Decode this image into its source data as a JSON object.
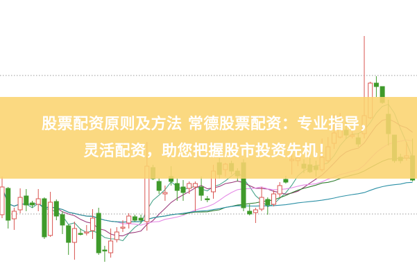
{
  "banner": {
    "line1": "股票配资原则及方法 常德股票配资：专业指导，",
    "line2": "灵活配资，助您把握股市投资先机！"
  },
  "colors": {
    "up": "#d9534f",
    "down": "#3f9a2b",
    "banner": "#fbd470",
    "gridline": "#999999",
    "ma": [
      "#4aa58c",
      "#9c3b7c",
      "#e58ae6",
      "#2f7d2f",
      "#2a8fa5"
    ]
  },
  "chart_data": {
    "type": "candlestick",
    "title": "",
    "grid": "dotted horizontal lines",
    "gridlines": [
      91,
      291
    ],
    "moving_average_periods": [
      5,
      10,
      20,
      30,
      60
    ],
    "candles": [
      [
        90,
        130,
        145,
        85
      ],
      [
        128,
        82,
        130,
        70
      ],
      [
        84,
        95,
        100,
        68
      ],
      [
        97,
        115,
        128,
        92
      ],
      [
        117,
        104,
        127,
        95
      ],
      [
        107,
        104,
        110,
        100
      ],
      [
        105,
        113,
        127,
        95
      ],
      [
        113,
        58,
        115,
        55
      ],
      [
        60,
        108,
        123,
        58
      ],
      [
        109,
        88,
        112,
        82
      ],
      [
        90,
        75,
        95,
        62
      ],
      [
        74,
        50,
        76,
        32
      ],
      [
        50,
        70,
        80,
        25
      ],
      [
        63,
        62,
        70,
        60
      ],
      [
        64,
        65,
        75,
        60
      ],
      [
        67,
        85,
        98,
        55
      ],
      [
        92,
        35,
        100,
        32
      ],
      [
        39,
        38,
        45,
        22
      ],
      [
        35,
        52,
        70,
        28
      ],
      [
        54,
        65,
        72,
        50
      ],
      [
        71,
        72,
        82,
        65
      ],
      [
        78,
        88,
        92,
        70
      ],
      [
        87,
        82,
        90,
        80
      ],
      [
        85,
        82,
        90,
        78
      ],
      [
        80,
        160,
        195,
        67
      ],
      [
        158,
        142,
        162,
        140
      ],
      [
        138,
        125,
        143,
        120
      ],
      [
        120,
        122,
        132,
        110
      ],
      [
        145,
        138,
        160,
        132
      ],
      [
        135,
        125,
        142,
        110
      ],
      [
        130,
        122,
        140,
        110
      ],
      [
        128,
        135,
        138,
        120
      ],
      [
        130,
        135,
        138,
        95
      ],
      [
        130,
        118,
        145,
        110
      ],
      [
        113,
        112,
        117,
        108
      ],
      [
        123,
        153,
        162,
        113
      ],
      [
        165,
        148,
        172,
        142
      ],
      [
        155,
        163,
        165,
        145
      ],
      [
        164,
        153,
        168,
        148
      ],
      [
        153,
        146,
        157,
        138
      ],
      [
        165,
        100,
        170,
        95
      ],
      [
        95,
        91,
        105,
        89
      ],
      [
        93,
        97,
        100,
        78
      ],
      [
        98,
        115,
        130,
        95
      ],
      [
        112,
        104,
        115,
        90
      ],
      [
        105,
        120,
        125,
        102
      ],
      [
        120,
        132,
        137,
        115
      ],
      [
        141,
        137,
        146,
        135
      ],
      [
        168,
        170,
        180,
        148
      ],
      [
        168,
        172,
        175,
        160
      ],
      [
        163,
        157,
        170,
        150
      ],
      [
        162,
        152,
        172,
        150
      ],
      [
        160,
        155,
        168,
        145
      ],
      [
        155,
        173,
        200,
        152
      ],
      [
        168,
        188,
        202,
        165
      ],
      [
        193,
        208,
        235,
        185
      ],
      [
        202,
        225,
        237,
        200
      ],
      [
        212,
        205,
        230,
        200
      ],
      [
        203,
        205,
        210,
        200
      ],
      [
        201,
        192,
        208,
        188
      ],
      [
        207,
        233,
        348,
        200
      ],
      [
        230,
        280,
        282,
        228
      ],
      [
        280,
        275,
        290,
        260
      ],
      [
        275,
        252,
        275,
        250
      ],
      [
        235,
        207,
        256,
        190
      ],
      [
        205,
        168,
        205,
        165
      ],
      [
        173,
        168,
        178,
        164
      ],
      [
        172,
        175,
        195,
        168
      ],
      [
        175,
        140,
        200,
        138
      ]
    ],
    "candle_fields": [
      "open",
      "close",
      "high",
      "low"
    ]
  }
}
